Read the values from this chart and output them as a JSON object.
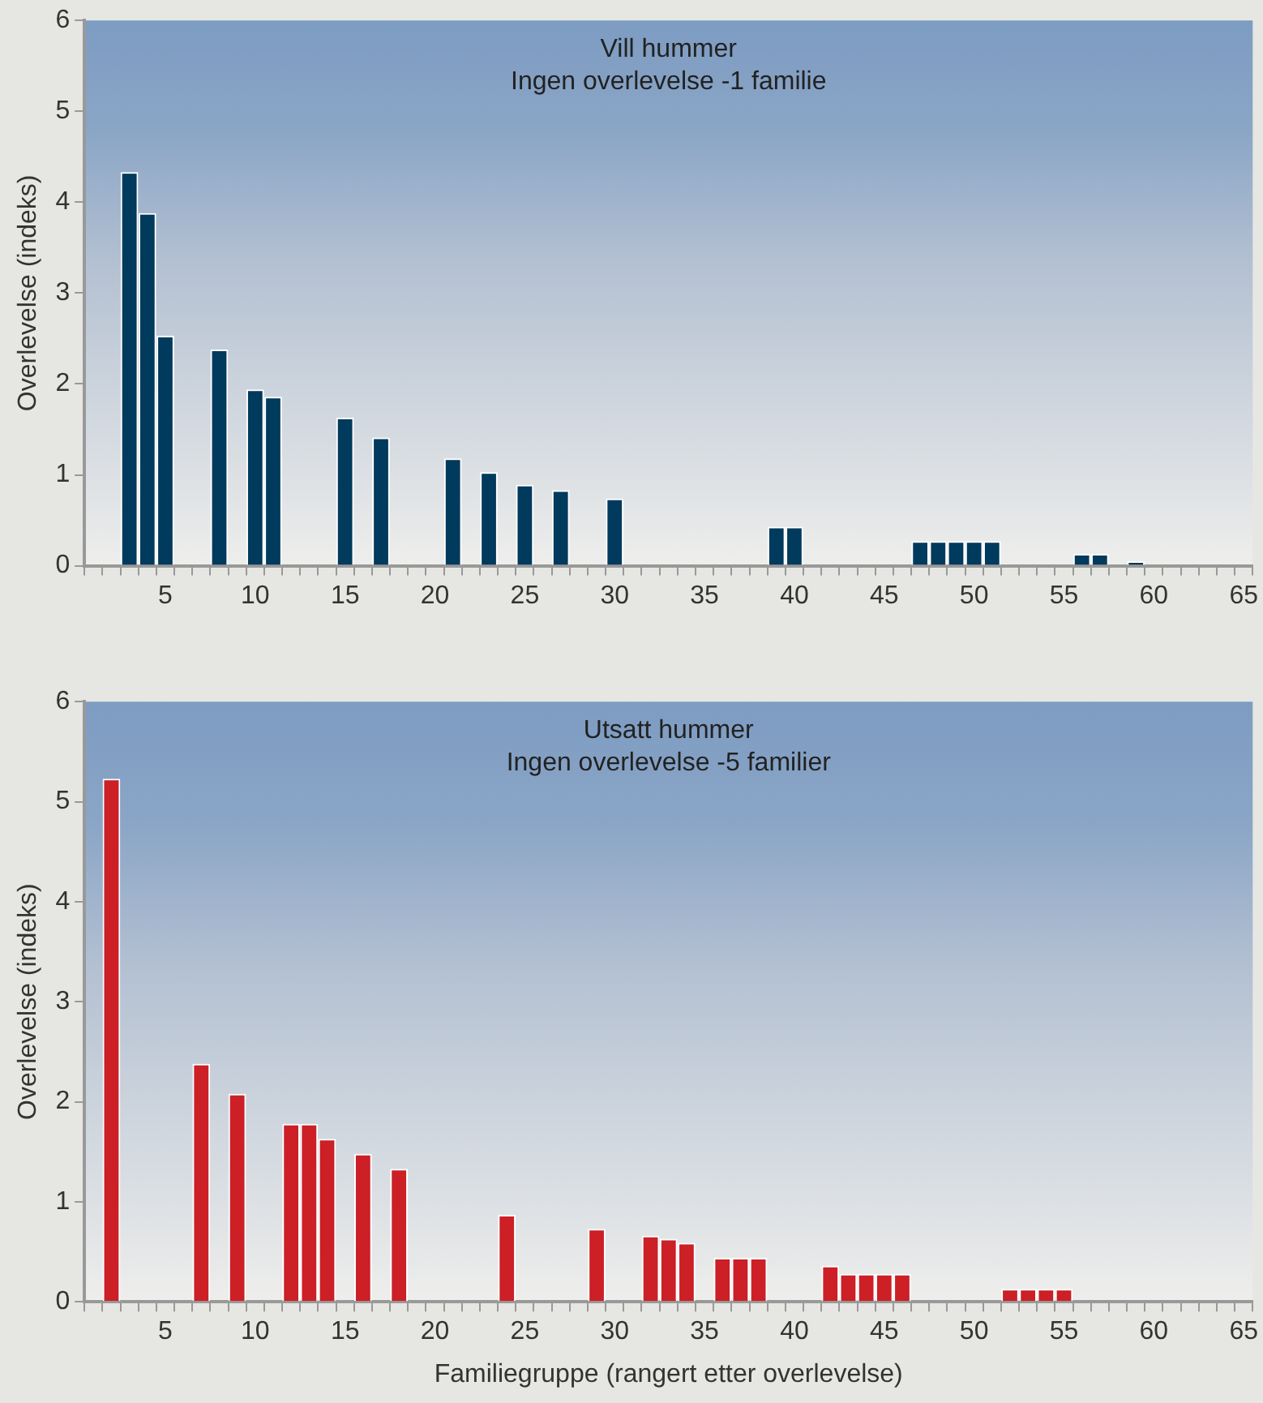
{
  "chart_data": [
    {
      "type": "bar",
      "title": "Vill hummer",
      "subtitle": "Ingen overlevelse -1 familie",
      "ylabel": "Overlevelse (indeks)",
      "color": "#003a5c",
      "ylim": [
        0,
        6
      ],
      "yticks": [
        0,
        1,
        2,
        3,
        4,
        5,
        6
      ],
      "categories": [
        null,
        null,
        null,
        null,
        "5",
        null,
        null,
        null,
        null,
        "10",
        null,
        null,
        null,
        null,
        "15",
        null,
        null,
        null,
        null,
        "20",
        null,
        null,
        null,
        null,
        "25",
        null,
        null,
        null,
        null,
        "30",
        null,
        null,
        null,
        null,
        "35",
        null,
        null,
        null,
        null,
        "40",
        null,
        null,
        null,
        null,
        "45",
        null,
        null,
        null,
        null,
        "50",
        null,
        null,
        null,
        null,
        "55",
        null,
        null,
        null,
        null,
        "60",
        null,
        null,
        null,
        null,
        "65"
      ],
      "values": [
        null,
        null,
        4.33,
        3.88,
        2.53,
        null,
        null,
        2.38,
        null,
        1.94,
        1.86,
        null,
        null,
        null,
        1.63,
        null,
        1.41,
        null,
        null,
        null,
        1.18,
        null,
        1.03,
        null,
        0.89,
        null,
        0.83,
        null,
        null,
        0.74,
        null,
        null,
        null,
        null,
        null,
        null,
        null,
        null,
        0.43,
        0.43,
        null,
        null,
        null,
        null,
        null,
        null,
        0.27,
        0.27,
        0.27,
        0.27,
        0.27,
        null,
        null,
        null,
        null,
        0.13,
        0.13,
        null,
        0.05,
        null,
        null,
        null,
        null,
        null,
        null
      ]
    },
    {
      "type": "bar",
      "title": "Utsatt hummer",
      "subtitle": "Ingen overlevelse -5 familier",
      "ylabel": "Overlevelse (indeks)",
      "xlabel": "Familiegruppe (rangert etter overlevelse)",
      "color": "#cc1f26",
      "ylim": [
        0,
        6
      ],
      "yticks": [
        0,
        1,
        2,
        3,
        4,
        5,
        6
      ],
      "categories": [
        null,
        null,
        null,
        null,
        "5",
        null,
        null,
        null,
        null,
        "10",
        null,
        null,
        null,
        null,
        "15",
        null,
        null,
        null,
        null,
        "20",
        null,
        null,
        null,
        null,
        "25",
        null,
        null,
        null,
        null,
        "30",
        null,
        null,
        null,
        null,
        "35",
        null,
        null,
        null,
        null,
        "40",
        null,
        null,
        null,
        null,
        "45",
        null,
        null,
        null,
        null,
        "50",
        null,
        null,
        null,
        null,
        "55",
        null,
        null,
        null,
        null,
        "60",
        null,
        null,
        null,
        null,
        "65"
      ],
      "values": [
        null,
        5.23,
        null,
        null,
        null,
        null,
        2.38,
        null,
        2.08,
        null,
        null,
        1.78,
        1.78,
        1.63,
        null,
        1.48,
        null,
        1.33,
        null,
        null,
        null,
        null,
        null,
        0.87,
        null,
        null,
        null,
        null,
        0.73,
        null,
        null,
        0.66,
        0.63,
        0.59,
        null,
        0.44,
        0.44,
        0.44,
        null,
        null,
        null,
        0.36,
        0.28,
        0.28,
        0.28,
        0.28,
        null,
        null,
        null,
        null,
        null,
        0.13,
        0.13,
        0.13,
        0.13,
        null,
        null,
        null,
        null,
        null,
        null,
        null,
        null,
        null,
        null
      ]
    }
  ]
}
